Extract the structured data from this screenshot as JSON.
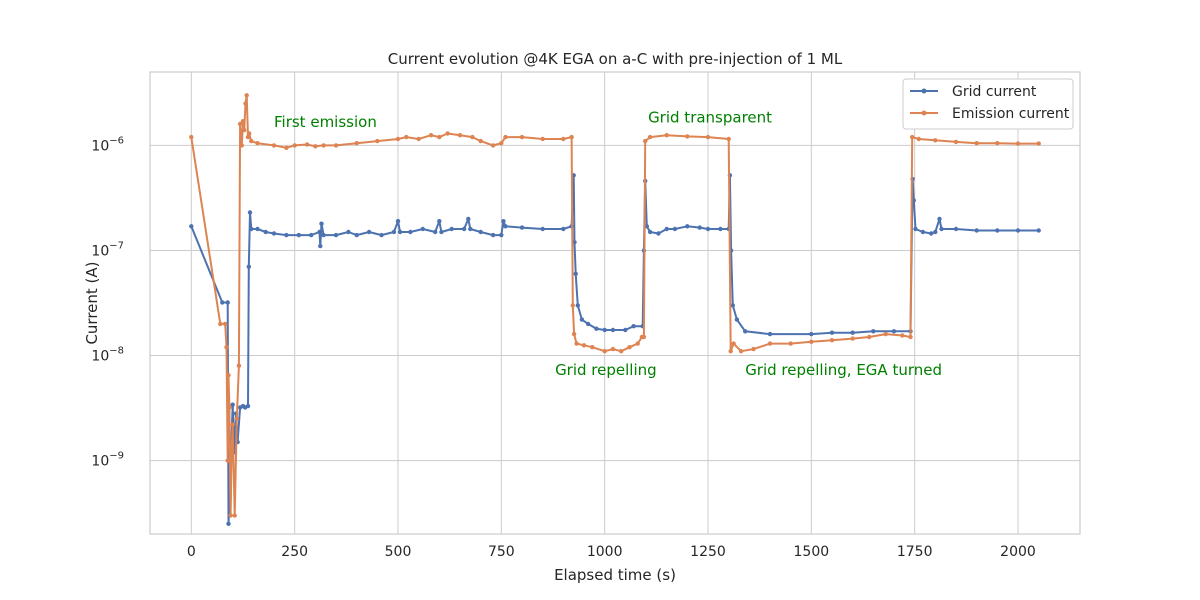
{
  "chart_data": {
    "type": "line",
    "title": "Current evolution @4K EGA on a-C with pre-injection of 1 ML",
    "xlabel": "Elapsed time (s)",
    "ylabel": "Current (A)",
    "xlim": [
      -100,
      2150
    ],
    "ylim": [
      2e-10,
      5e-06
    ],
    "yscale": "log",
    "grid": true,
    "legend_position": "top-right",
    "x_ticks": [
      0,
      250,
      500,
      750,
      1000,
      1250,
      1500,
      1750,
      2000
    ],
    "y_ticks": [
      {
        "value": 1e-09,
        "label": "10−9"
      },
      {
        "value": 1e-08,
        "label": "10−8"
      },
      {
        "value": 1e-07,
        "label": "10−7"
      },
      {
        "value": 1e-06,
        "label": "10−6"
      }
    ],
    "series": [
      {
        "name": "Grid current",
        "color": "#4c72b0",
        "points": [
          [
            0,
            1.7e-07
          ],
          [
            75,
            3.2e-08
          ],
          [
            88,
            3.2e-08
          ],
          [
            90,
            2.5e-10
          ],
          [
            93,
            5e-10
          ],
          [
            96,
            1.2e-09
          ],
          [
            100,
            3.4e-09
          ],
          [
            104,
            1.2e-09
          ],
          [
            108,
            2.8e-09
          ],
          [
            112,
            1.5e-09
          ],
          [
            118,
            3.2e-09
          ],
          [
            125,
            3.3e-09
          ],
          [
            130,
            3.2e-09
          ],
          [
            137,
            3.3e-09
          ],
          [
            139,
            7e-08
          ],
          [
            142,
            2.3e-07
          ],
          [
            145,
            1.6e-07
          ],
          [
            160,
            1.6e-07
          ],
          [
            180,
            1.5e-07
          ],
          [
            200,
            1.45e-07
          ],
          [
            230,
            1.4e-07
          ],
          [
            260,
            1.4e-07
          ],
          [
            290,
            1.4e-07
          ],
          [
            310,
            1.5e-07
          ],
          [
            312,
            1.1e-07
          ],
          [
            315,
            1.8e-07
          ],
          [
            320,
            1.4e-07
          ],
          [
            350,
            1.4e-07
          ],
          [
            380,
            1.5e-07
          ],
          [
            400,
            1.4e-07
          ],
          [
            430,
            1.5e-07
          ],
          [
            460,
            1.4e-07
          ],
          [
            490,
            1.5e-07
          ],
          [
            500,
            1.9e-07
          ],
          [
            505,
            1.5e-07
          ],
          [
            530,
            1.5e-07
          ],
          [
            560,
            1.6e-07
          ],
          [
            590,
            1.5e-07
          ],
          [
            600,
            1.9e-07
          ],
          [
            605,
            1.5e-07
          ],
          [
            630,
            1.6e-07
          ],
          [
            660,
            1.6e-07
          ],
          [
            670,
            2e-07
          ],
          [
            675,
            1.6e-07
          ],
          [
            700,
            1.5e-07
          ],
          [
            730,
            1.4e-07
          ],
          [
            750,
            1.4e-07
          ],
          [
            755,
            1.9e-07
          ],
          [
            760,
            1.7e-07
          ],
          [
            800,
            1.65e-07
          ],
          [
            850,
            1.6e-07
          ],
          [
            900,
            1.6e-07
          ],
          [
            920,
            1.7e-07
          ],
          [
            925,
            5.2e-07
          ],
          [
            927,
            1.2e-07
          ],
          [
            930,
            6e-08
          ],
          [
            935,
            3e-08
          ],
          [
            945,
            2.2e-08
          ],
          [
            960,
            2e-08
          ],
          [
            980,
            1.8e-08
          ],
          [
            1000,
            1.75e-08
          ],
          [
            1020,
            1.75e-08
          ],
          [
            1050,
            1.75e-08
          ],
          [
            1070,
            1.9e-08
          ],
          [
            1092,
            1.9e-08
          ],
          [
            1095,
            1e-07
          ],
          [
            1098,
            4.6e-07
          ],
          [
            1102,
            1.7e-07
          ],
          [
            1110,
            1.5e-07
          ],
          [
            1130,
            1.45e-07
          ],
          [
            1150,
            1.6e-07
          ],
          [
            1170,
            1.6e-07
          ],
          [
            1200,
            1.7e-07
          ],
          [
            1230,
            1.65e-07
          ],
          [
            1250,
            1.6e-07
          ],
          [
            1280,
            1.6e-07
          ],
          [
            1300,
            1.6e-07
          ],
          [
            1303,
            5.2e-07
          ],
          [
            1306,
            1e-07
          ],
          [
            1310,
            3e-08
          ],
          [
            1320,
            2.2e-08
          ],
          [
            1340,
            1.7e-08
          ],
          [
            1400,
            1.6e-08
          ],
          [
            1500,
            1.6e-08
          ],
          [
            1550,
            1.65e-08
          ],
          [
            1600,
            1.65e-08
          ],
          [
            1650,
            1.7e-08
          ],
          [
            1700,
            1.7e-08
          ],
          [
            1740,
            1.7e-08
          ],
          [
            1745,
            4.8e-07
          ],
          [
            1748,
            3e-07
          ],
          [
            1752,
            1.6e-07
          ],
          [
            1770,
            1.5e-07
          ],
          [
            1790,
            1.45e-07
          ],
          [
            1800,
            1.5e-07
          ],
          [
            1810,
            2e-07
          ],
          [
            1815,
            1.6e-07
          ],
          [
            1850,
            1.6e-07
          ],
          [
            1900,
            1.55e-07
          ],
          [
            1950,
            1.55e-07
          ],
          [
            2000,
            1.55e-07
          ],
          [
            2050,
            1.55e-07
          ]
        ]
      },
      {
        "name": "Emission current",
        "color": "#dd8452",
        "points": [
          [
            0,
            1.2e-06
          ],
          [
            70,
            2e-08
          ],
          [
            82,
            2e-08
          ],
          [
            85,
            1.2e-08
          ],
          [
            88,
            1e-09
          ],
          [
            90,
            6.5e-09
          ],
          [
            92,
            3.2e-09
          ],
          [
            95,
            3e-10
          ],
          [
            98,
            1.4e-09
          ],
          [
            100,
            2.2e-09
          ],
          [
            105,
            3e-10
          ],
          [
            110,
            2.5e-09
          ],
          [
            115,
            8e-09
          ],
          [
            118,
            1.6e-06
          ],
          [
            122,
            1e-06
          ],
          [
            125,
            1.7e-06
          ],
          [
            128,
            1.4e-06
          ],
          [
            131,
            2.5e-06
          ],
          [
            134,
            3e-06
          ],
          [
            137,
            1.2e-06
          ],
          [
            140,
            1.3e-06
          ],
          [
            145,
            1.1e-06
          ],
          [
            160,
            1.05e-06
          ],
          [
            200,
            1e-06
          ],
          [
            230,
            9.5e-07
          ],
          [
            250,
            1e-06
          ],
          [
            280,
            1.02e-06
          ],
          [
            300,
            9.8e-07
          ],
          [
            320,
            1e-06
          ],
          [
            350,
            1e-06
          ],
          [
            400,
            1.05e-06
          ],
          [
            450,
            1.1e-06
          ],
          [
            500,
            1.15e-06
          ],
          [
            520,
            1.2e-06
          ],
          [
            550,
            1.15e-06
          ],
          [
            580,
            1.25e-06
          ],
          [
            600,
            1.2e-06
          ],
          [
            620,
            1.3e-06
          ],
          [
            650,
            1.25e-06
          ],
          [
            680,
            1.2e-06
          ],
          [
            700,
            1.1e-06
          ],
          [
            730,
            1e-06
          ],
          [
            750,
            1.05e-06
          ],
          [
            760,
            1.2e-06
          ],
          [
            800,
            1.2e-06
          ],
          [
            850,
            1.15e-06
          ],
          [
            900,
            1.15e-06
          ],
          [
            920,
            1.2e-06
          ],
          [
            923,
            3e-08
          ],
          [
            926,
            1.6e-08
          ],
          [
            932,
            1.3e-08
          ],
          [
            950,
            1.25e-08
          ],
          [
            970,
            1.2e-08
          ],
          [
            1000,
            1.1e-08
          ],
          [
            1020,
            1.15e-08
          ],
          [
            1040,
            1.1e-08
          ],
          [
            1060,
            1.2e-08
          ],
          [
            1080,
            1.3e-08
          ],
          [
            1090,
            1.5e-08
          ],
          [
            1095,
            1.5e-08
          ],
          [
            1098,
            1.1e-06
          ],
          [
            1110,
            1.2e-06
          ],
          [
            1150,
            1.25e-06
          ],
          [
            1200,
            1.22e-06
          ],
          [
            1250,
            1.2e-06
          ],
          [
            1300,
            1.15e-06
          ],
          [
            1305,
            1.1e-08
          ],
          [
            1312,
            1.3e-08
          ],
          [
            1330,
            1.1e-08
          ],
          [
            1360,
            1.15e-08
          ],
          [
            1400,
            1.3e-08
          ],
          [
            1450,
            1.3e-08
          ],
          [
            1500,
            1.35e-08
          ],
          [
            1550,
            1.4e-08
          ],
          [
            1600,
            1.45e-08
          ],
          [
            1640,
            1.5e-08
          ],
          [
            1680,
            1.6e-08
          ],
          [
            1720,
            1.55e-08
          ],
          [
            1740,
            1.5e-08
          ],
          [
            1744,
            1.2e-06
          ],
          [
            1760,
            1.15e-06
          ],
          [
            1800,
            1.12e-06
          ],
          [
            1850,
            1.08e-06
          ],
          [
            1900,
            1.05e-06
          ],
          [
            1950,
            1.05e-06
          ],
          [
            2000,
            1.04e-06
          ],
          [
            2050,
            1.04e-06
          ]
        ]
      }
    ],
    "annotations": [
      {
        "text": "First emission",
        "x": 200,
        "y": 1.5e-06,
        "color": "#008000"
      },
      {
        "text": "Grid transparent",
        "x": 1105,
        "y": 1.65e-06,
        "color": "#008000"
      },
      {
        "text": "Grid repelling",
        "x": 880,
        "y": 6.5e-09,
        "color": "#008000"
      },
      {
        "text": "Grid repelling, EGA turned",
        "x": 1340,
        "y": 6.5e-09,
        "color": "#008000"
      }
    ]
  }
}
